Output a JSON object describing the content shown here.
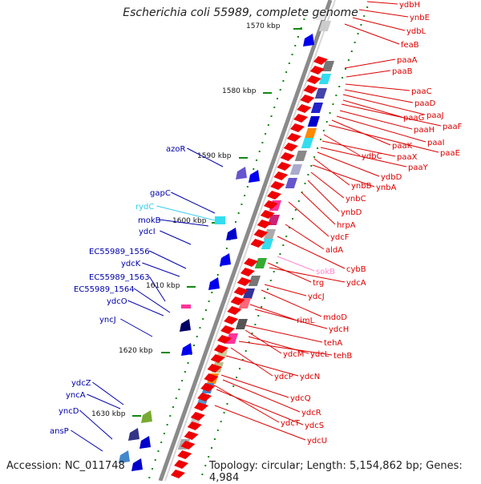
{
  "title": "Escherichia coli 55989, complete genome",
  "footer": {
    "accession": "Accession: NC_011748",
    "topology": "Topology: circular; Length: 5,154,862 bp; Genes: 4,984"
  },
  "colors": {
    "backbone": "#8a8a8a",
    "right_label": "#dd0000",
    "left_label": "#0000aa",
    "rna_label": "#33ccee",
    "pink_label": "#ff88cc",
    "tick": "#118811"
  },
  "ticks": [
    "1570 kbp",
    "1580 kbp",
    "1590 kbp",
    "1600 kbp",
    "1610 kbp",
    "1620 kbp",
    "1630 kbp"
  ],
  "right_genes": [
    "ydbH",
    "ynbE",
    "ydbL",
    "feaB",
    "paaA",
    "paaB",
    "paaC",
    "paaD",
    "paaJ",
    "paaG",
    "paaF",
    "paaH",
    "paaI",
    "paaK",
    "paaE",
    "ydbC",
    "paaX",
    "paaY",
    "ydbD",
    "ynbB",
    "ynbA",
    "ynbC",
    "ynbD",
    "hrpA",
    "ydcF",
    "aldA",
    "cybB",
    "sokB",
    "trg",
    "ydcA",
    "ydcJ",
    "mdoD",
    "rimL",
    "ydcH",
    "tehA",
    "ydcM",
    "ydcL",
    "tehB",
    "ydcP",
    "ydcN",
    "ydcQ",
    "ydcR",
    "ydcT",
    "ydcS",
    "ydcU"
  ],
  "left_genes": [
    "azoR",
    "gapC",
    "rydC",
    "mokB",
    "ydcI",
    "EC55989_1556",
    "ydcK",
    "EC55989_1563",
    "EC55989_1564",
    "ydcO",
    "yncJ",
    "ydcZ",
    "yncA",
    "yncD",
    "ansP"
  ]
}
